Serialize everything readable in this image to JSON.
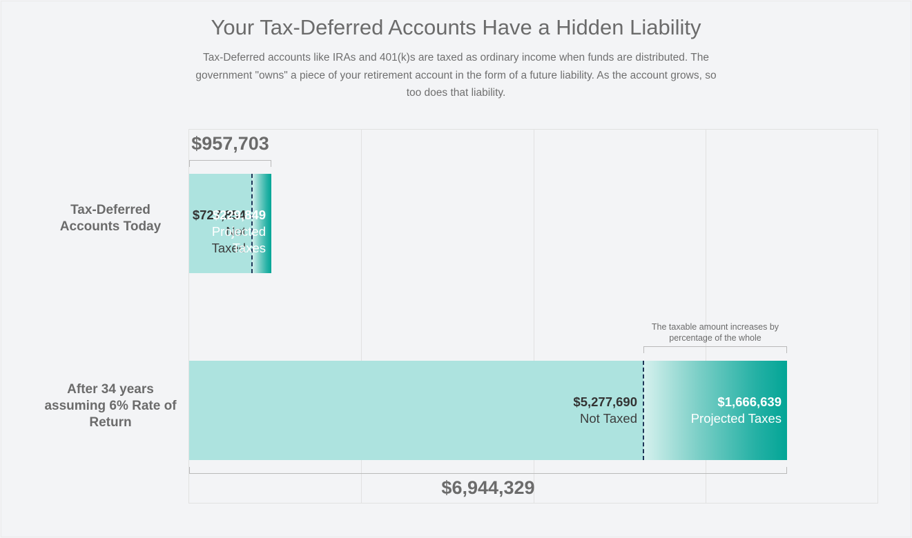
{
  "header": {
    "title": "Your Tax-Deferred Accounts Have a Hidden Liability",
    "subtitle": "Tax-Deferred accounts like IRAs and 401(k)s are taxed as ordinary income when funds are distributed. The government \"owns\" a piece of your retirement account in the form of a future liability. As the account grows, so too does that liability."
  },
  "chart_data": {
    "type": "bar",
    "orientation": "horizontal",
    "stacked": true,
    "title": "Your Tax-Deferred Accounts Have a Hidden Liability",
    "categories": [
      "Tax-Deferred Accounts Today",
      "After 34 years assuming 6% Rate of Return"
    ],
    "series": [
      {
        "name": "Not Taxed",
        "values": [
          727854,
          5277690
        ],
        "color": "#ade3df"
      },
      {
        "name": "Projected Taxes",
        "values": [
          229849,
          1666639
        ],
        "color": "#03a596"
      }
    ],
    "totals": [
      957703,
      6944329
    ],
    "labels": {
      "row0": {
        "category": "Tax-Deferred Accounts Today",
        "untaxed_value": "$727,854",
        "untaxed_caption": "Not Taxed",
        "taxed_value": "$229,849",
        "taxed_caption": "Projected Taxes",
        "total": "$957,703"
      },
      "row1": {
        "category": "After 34 years assuming 6% Rate of Return",
        "untaxed_value": "$5,277,690",
        "untaxed_caption": "Not Taxed",
        "taxed_value": "$1,666,639",
        "taxed_caption": "Projected Taxes",
        "total": "$6,944,329"
      }
    },
    "annotation": "The taxable amount increases by percentage of the whole",
    "grid": true
  }
}
